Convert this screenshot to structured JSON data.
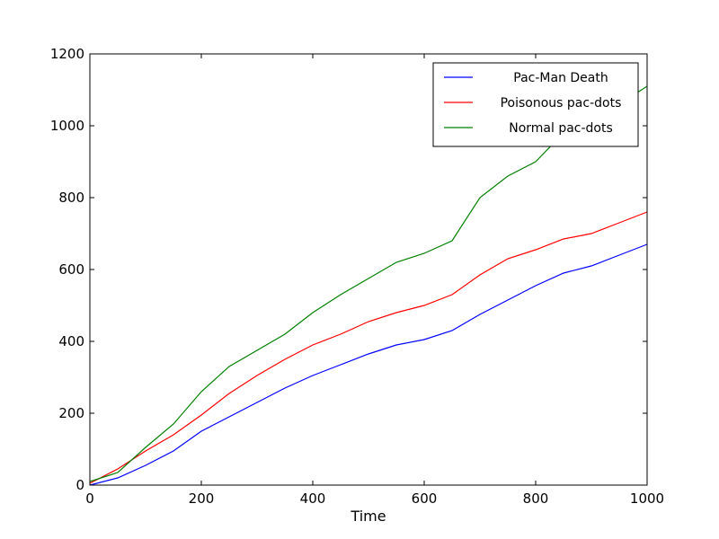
{
  "chart_data": {
    "type": "line",
    "xlabel": "Time",
    "ylabel": "",
    "xlim": [
      0,
      1000
    ],
    "ylim": [
      0,
      1200
    ],
    "xticks": [
      0,
      200,
      400,
      600,
      800,
      1000
    ],
    "yticks": [
      0,
      200,
      400,
      600,
      800,
      1000,
      1200
    ],
    "grid": false,
    "legend_position": "top-right",
    "series": [
      {
        "name": "Pac-Man Death",
        "color": "#0000ff",
        "x": [
          0,
          50,
          100,
          150,
          200,
          250,
          300,
          350,
          400,
          450,
          500,
          550,
          600,
          650,
          700,
          750,
          800,
          850,
          900,
          950,
          1000
        ],
        "y": [
          0,
          20,
          55,
          95,
          150,
          190,
          230,
          270,
          305,
          335,
          365,
          390,
          405,
          430,
          475,
          515,
          555,
          590,
          610,
          640,
          670
        ]
      },
      {
        "name": "Poisonous pac-dots",
        "color": "#ff0000",
        "x": [
          0,
          50,
          100,
          150,
          200,
          250,
          300,
          350,
          400,
          450,
          500,
          550,
          600,
          650,
          700,
          750,
          800,
          850,
          900,
          950,
          1000
        ],
        "y": [
          5,
          45,
          95,
          140,
          195,
          255,
          305,
          350,
          390,
          420,
          455,
          480,
          500,
          530,
          585,
          630,
          655,
          685,
          700,
          730,
          760
        ]
      },
      {
        "name": "Normal pac-dots",
        "color": "#008000",
        "x": [
          0,
          50,
          100,
          150,
          200,
          250,
          300,
          350,
          400,
          450,
          500,
          550,
          600,
          650,
          700,
          750,
          800,
          850,
          900,
          950,
          1000
        ],
        "y": [
          10,
          35,
          105,
          170,
          260,
          330,
          375,
          420,
          480,
          530,
          575,
          620,
          645,
          680,
          800,
          860,
          900,
          980,
          1020,
          1060,
          1110
        ]
      }
    ]
  }
}
